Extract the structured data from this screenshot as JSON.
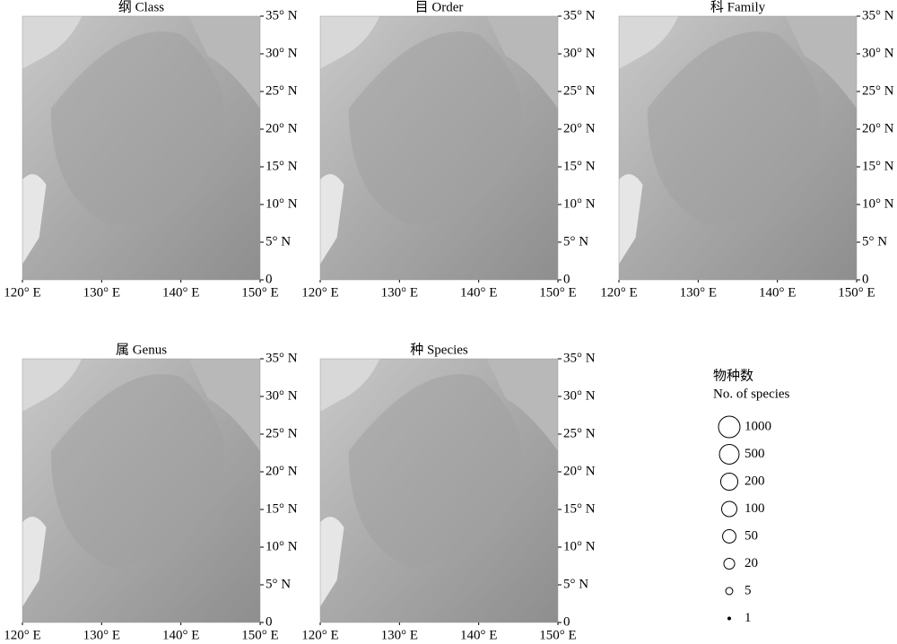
{
  "panels": [
    {
      "title": "纲 Class",
      "xlim": [
        120,
        150
      ],
      "ylim": [
        0,
        35
      ],
      "xticks": [
        {
          "value": 120,
          "label": "120° E"
        },
        {
          "value": 130,
          "label": "130° E"
        },
        {
          "value": 140,
          "label": "140° E"
        },
        {
          "value": 150,
          "label": "150° E"
        }
      ],
      "yticks": [
        0,
        {
          "value": 5,
          "label": "5° N"
        },
        {
          "value": 10,
          "label": "10° N"
        },
        {
          "value": 15,
          "label": "15° N"
        },
        {
          "value": 20,
          "label": "20° N"
        },
        {
          "value": 25,
          "label": "25° N"
        },
        {
          "value": 30,
          "label": "30° N"
        },
        {
          "value": 35,
          "label": "35° N"
        }
      ]
    },
    {
      "title": "目 Order",
      "xlim": [
        120,
        150
      ],
      "ylim": [
        0,
        35
      ],
      "xticks": [
        {
          "value": 120,
          "label": "120° E"
        },
        {
          "value": 130,
          "label": "130° E"
        },
        {
          "value": 140,
          "label": "140° E"
        },
        {
          "value": 150,
          "label": "150° E"
        }
      ],
      "yticks": [
        0,
        {
          "value": 5,
          "label": "5° N"
        },
        {
          "value": 10,
          "label": "10° N"
        },
        {
          "value": 15,
          "label": "15° N"
        },
        {
          "value": 20,
          "label": "20° N"
        },
        {
          "value": 25,
          "label": "25° N"
        },
        {
          "value": 30,
          "label": "30° N"
        },
        {
          "value": 35,
          "label": "35° N"
        }
      ]
    },
    {
      "title": "科 Family",
      "xlim": [
        120,
        150
      ],
      "ylim": [
        0,
        35
      ],
      "xticks": [
        {
          "value": 120,
          "label": "120° E"
        },
        {
          "value": 130,
          "label": "130° E"
        },
        {
          "value": 140,
          "label": "140° E"
        },
        {
          "value": 150,
          "label": "150° E"
        }
      ],
      "yticks": [
        0,
        {
          "value": 5,
          "label": "5° N"
        },
        {
          "value": 10,
          "label": "10° N"
        },
        {
          "value": 15,
          "label": "15° N"
        },
        {
          "value": 20,
          "label": "20° N"
        },
        {
          "value": 25,
          "label": "25° N"
        },
        {
          "value": 30,
          "label": "30° N"
        },
        {
          "value": 35,
          "label": "35° N"
        }
      ]
    },
    {
      "title": "属 Genus",
      "xlim": [
        120,
        150
      ],
      "ylim": [
        0,
        35
      ],
      "xticks": [
        {
          "value": 120,
          "label": "120° E"
        },
        {
          "value": 130,
          "label": "130° E"
        },
        {
          "value": 140,
          "label": "140° E"
        },
        {
          "value": 150,
          "label": "150° E"
        }
      ],
      "yticks": [
        0,
        {
          "value": 5,
          "label": "5° N"
        },
        {
          "value": 10,
          "label": "10° N"
        },
        {
          "value": 15,
          "label": "15° N"
        },
        {
          "value": 20,
          "label": "20° N"
        },
        {
          "value": 25,
          "label": "25° N"
        },
        {
          "value": 30,
          "label": "30° N"
        },
        {
          "value": 35,
          "label": "35° N"
        }
      ]
    },
    {
      "title": "种 Species",
      "xlim": [
        120,
        150
      ],
      "ylim": [
        0,
        35
      ],
      "xticks": [
        {
          "value": 120,
          "label": "120° E"
        },
        {
          "value": 130,
          "label": "130° E"
        },
        {
          "value": 140,
          "label": "140° E"
        },
        {
          "value": 150,
          "label": "150° E"
        }
      ],
      "yticks": [
        0,
        {
          "value": 5,
          "label": "5° N"
        },
        {
          "value": 10,
          "label": "10° N"
        },
        {
          "value": 15,
          "label": "15° N"
        },
        {
          "value": 20,
          "label": "20° N"
        },
        {
          "value": 25,
          "label": "25° N"
        },
        {
          "value": 30,
          "label": "30° N"
        },
        {
          "value": 35,
          "label": "35° N"
        }
      ]
    }
  ],
  "legend": {
    "title": "物种数",
    "subtitle": "No. of species",
    "values": [
      1000,
      500,
      200,
      100,
      50,
      20,
      5,
      1
    ]
  }
}
